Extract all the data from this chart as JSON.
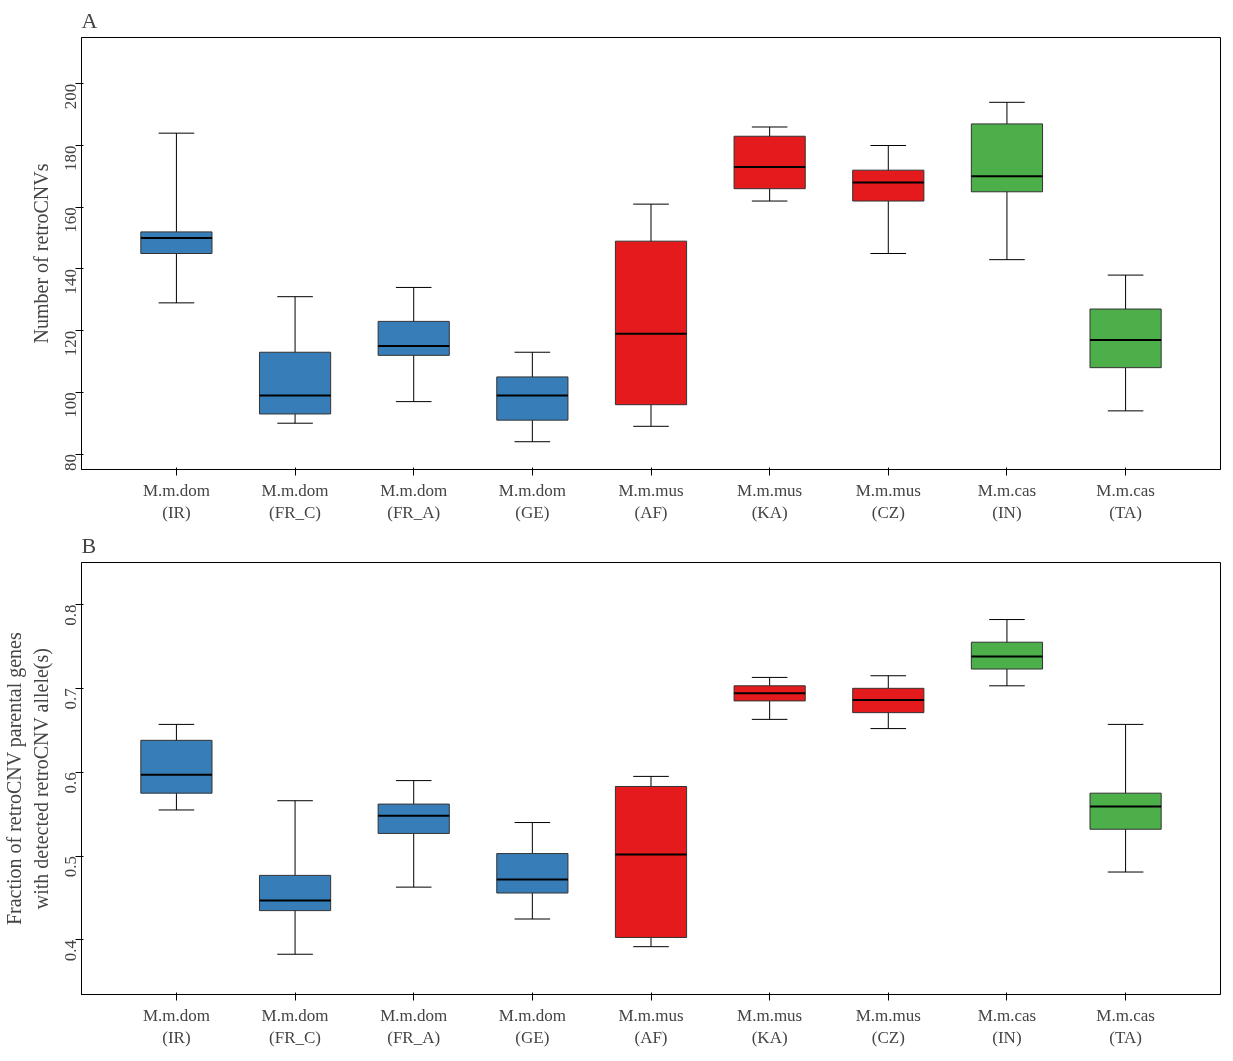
{
  "chart_data": [
    {
      "type": "box",
      "title": "A",
      "ylabel": "Number of retroCNVs",
      "categories": [
        "M.m.dom\n(IR)",
        "M.m.dom\n(FR_C)",
        "M.m.dom\n(FR_A)",
        "M.m.dom\n(GE)",
        "M.m.mus\n(AF)",
        "M.m.mus\n(KA)",
        "M.m.mus\n(CZ)",
        "M.m.cas\n(IN)",
        "M.m.cas\n(TA)"
      ],
      "colors": [
        "#377eb8",
        "#377eb8",
        "#377eb8",
        "#377eb8",
        "#e41a1c",
        "#e41a1c",
        "#e41a1c",
        "#4daf4a",
        "#4daf4a"
      ],
      "ylim": [
        75,
        215
      ],
      "yticks": [
        80,
        100,
        120,
        140,
        160,
        180,
        200
      ],
      "boxes": [
        {
          "low": 129,
          "q1": 145,
          "median": 150,
          "q3": 152,
          "high": 184
        },
        {
          "low": 90,
          "q1": 93,
          "median": 99,
          "q3": 113,
          "high": 131
        },
        {
          "low": 97,
          "q1": 112,
          "median": 115,
          "q3": 123,
          "high": 134
        },
        {
          "low": 84,
          "q1": 91,
          "median": 99,
          "q3": 105,
          "high": 113
        },
        {
          "low": 89,
          "q1": 96,
          "median": 119,
          "q3": 149,
          "high": 161
        },
        {
          "low": 162,
          "q1": 166,
          "median": 173,
          "q3": 183,
          "high": 186
        },
        {
          "low": 145,
          "q1": 162,
          "median": 168,
          "q3": 172,
          "high": 180
        },
        {
          "low": 143,
          "q1": 165,
          "median": 170,
          "q3": 187,
          "high": 194
        },
        {
          "low": 94,
          "q1": 108,
          "median": 117,
          "q3": 127,
          "high": 138
        }
      ]
    },
    {
      "type": "box",
      "title": "B",
      "ylabel": "Fraction of retroCNV parental genes\nwith detected retroCNV allele(s)",
      "categories": [
        "M.m.dom\n(IR)",
        "M.m.dom\n(FR_C)",
        "M.m.dom\n(FR_A)",
        "M.m.dom\n(GE)",
        "M.m.mus\n(AF)",
        "M.m.mus\n(KA)",
        "M.m.mus\n(CZ)",
        "M.m.cas\n(IN)",
        "M.m.cas\n(TA)"
      ],
      "colors": [
        "#377eb8",
        "#377eb8",
        "#377eb8",
        "#377eb8",
        "#e41a1c",
        "#e41a1c",
        "#e41a1c",
        "#4daf4a",
        "#4daf4a"
      ],
      "ylim": [
        0.335,
        0.85
      ],
      "yticks": [
        0.4,
        0.5,
        0.6,
        0.7,
        0.8
      ],
      "boxes": [
        {
          "low": 0.555,
          "q1": 0.575,
          "median": 0.597,
          "q3": 0.638,
          "high": 0.657
        },
        {
          "low": 0.383,
          "q1": 0.435,
          "median": 0.447,
          "q3": 0.477,
          "high": 0.566
        },
        {
          "low": 0.463,
          "q1": 0.527,
          "median": 0.548,
          "q3": 0.562,
          "high": 0.59
        },
        {
          "low": 0.425,
          "q1": 0.456,
          "median": 0.472,
          "q3": 0.503,
          "high": 0.54
        },
        {
          "low": 0.392,
          "q1": 0.403,
          "median": 0.502,
          "q3": 0.583,
          "high": 0.595
        },
        {
          "low": 0.663,
          "q1": 0.685,
          "median": 0.694,
          "q3": 0.703,
          "high": 0.713
        },
        {
          "low": 0.652,
          "q1": 0.671,
          "median": 0.686,
          "q3": 0.7,
          "high": 0.715
        },
        {
          "low": 0.703,
          "q1": 0.723,
          "median": 0.738,
          "q3": 0.755,
          "high": 0.782
        },
        {
          "low": 0.481,
          "q1": 0.532,
          "median": 0.559,
          "q3": 0.575,
          "high": 0.657
        }
      ]
    }
  ]
}
